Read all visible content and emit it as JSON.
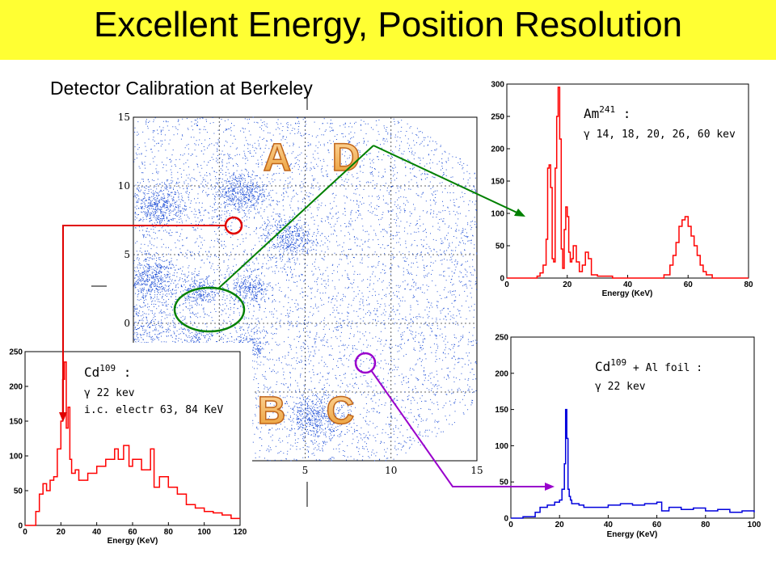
{
  "slide": {
    "title": "Excellent Energy, Position Resolution",
    "subtitle": "Detector Calibration at Berkeley"
  },
  "colors": {
    "title_bg": "#ffff33",
    "scatter_points": "#1f4fd6",
    "am_spectrum": "#ff0000",
    "cd_al_spectrum": "#0000dd",
    "cd_spectrum": "#ff0000",
    "green_connector": "#008000",
    "red_connector": "#e00000",
    "purple_connector": "#9900cc"
  },
  "quadrant_labels": [
    "A",
    "D",
    "B",
    "C"
  ],
  "chart_data": [
    {
      "type": "scatter",
      "x_ticks": [
        "0",
        "5",
        "10",
        "15"
      ],
      "y_ticks": [
        "15",
        "10",
        "5",
        "0",
        "-5"
      ],
      "xlim": [
        -5,
        15
      ],
      "ylim": [
        -10,
        15
      ],
      "grid": true,
      "clusters": [
        {
          "x": -6.5,
          "y": -1.0,
          "spread": 1.6
        },
        {
          "x": -4.0,
          "y": 3.2,
          "spread": 1.0
        },
        {
          "x": -3.5,
          "y": 8.5,
          "spread": 1.0
        },
        {
          "x": 1.2,
          "y": 9.5,
          "spread": 1.0
        },
        {
          "x": 3.9,
          "y": 6.3,
          "spread": 0.9
        },
        {
          "x": -1.2,
          "y": 2.4,
          "spread": 0.7
        },
        {
          "x": 1.8,
          "y": 2.4,
          "spread": 0.7
        },
        {
          "x": -1.2,
          "y": -1.8,
          "spread": 0.7
        },
        {
          "x": 1.6,
          "y": -1.8,
          "spread": 0.7
        },
        {
          "x": 5.6,
          "y": -6.8,
          "spread": 1.0
        }
      ]
    },
    {
      "type": "line",
      "series_name": "Am241",
      "annotation_isotope": "Am",
      "annotation_mass": "241",
      "annotation_suffix": " :",
      "annotation_gamma": "γ 14, 18, 20, 26, 60 kev",
      "xlabel": "Energy (KeV)",
      "x_ticks": [
        0,
        20,
        40,
        60,
        80
      ],
      "y_ticks": [
        0,
        50,
        100,
        150,
        200,
        250,
        300
      ],
      "xlim": [
        0,
        80
      ],
      "ylim": [
        0,
        300
      ],
      "x": [
        0,
        2,
        4,
        6,
        8,
        10,
        11,
        12,
        13,
        13.5,
        14,
        14.5,
        15,
        15.5,
        16,
        16.5,
        17,
        17.5,
        18,
        18.5,
        19,
        19.5,
        20,
        20.5,
        21,
        21.5,
        22,
        23,
        24,
        25,
        26,
        27,
        28,
        30,
        35,
        40,
        45,
        50,
        52,
        54,
        55,
        56,
        57,
        58,
        59,
        60,
        61,
        62,
        63,
        64,
        65,
        66,
        68,
        70,
        75,
        80
      ],
      "values": [
        0,
        0,
        0,
        0,
        0,
        3,
        8,
        20,
        60,
        170,
        175,
        140,
        30,
        25,
        170,
        250,
        295,
        215,
        45,
        15,
        75,
        110,
        95,
        40,
        25,
        30,
        50,
        25,
        10,
        20,
        40,
        30,
        5,
        3,
        0,
        0,
        0,
        0,
        5,
        20,
        35,
        55,
        80,
        90,
        95,
        80,
        65,
        50,
        35,
        20,
        10,
        5,
        0,
        0,
        0,
        0
      ]
    },
    {
      "type": "line",
      "series_name": "Cd109 + Al foil",
      "annotation_isotope": "Cd",
      "annotation_mass": "109",
      "annotation_suffix": " + Al foil :",
      "annotation_gamma": "γ 22 kev",
      "xlabel": "Energy (KeV)",
      "x_ticks": [
        0,
        20,
        40,
        60,
        80,
        100
      ],
      "y_ticks": [
        0,
        50,
        100,
        150,
        200,
        250
      ],
      "xlim": [
        0,
        100
      ],
      "ylim": [
        0,
        250
      ],
      "x": [
        0,
        5,
        10,
        12,
        15,
        18,
        20,
        21,
        22,
        22.5,
        23,
        23.5,
        24,
        24.5,
        25,
        26,
        28,
        30,
        35,
        40,
        45,
        50,
        55,
        60,
        62,
        65,
        70,
        75,
        80,
        85,
        90,
        95,
        100
      ],
      "values": [
        0,
        2,
        8,
        15,
        18,
        22,
        25,
        40,
        75,
        150,
        110,
        40,
        30,
        25,
        20,
        20,
        18,
        15,
        15,
        18,
        20,
        18,
        20,
        22,
        10,
        15,
        12,
        14,
        10,
        12,
        8,
        10,
        8
      ]
    },
    {
      "type": "line",
      "series_name": "Cd109",
      "annotation_isotope": "Cd",
      "annotation_mass": "109",
      "annotation_suffix": " :",
      "annotation_gamma": "γ 22 kev",
      "annotation_extra": "i.c. electr 63, 84 KeV",
      "xlabel": "Energy (KeV)",
      "x_ticks": [
        0,
        20,
        40,
        60,
        80,
        100,
        120
      ],
      "y_ticks": [
        0,
        50,
        100,
        150,
        200,
        250
      ],
      "xlim": [
        0,
        120
      ],
      "ylim": [
        0,
        250
      ],
      "x": [
        0,
        4,
        6,
        8,
        10,
        12,
        14,
        16,
        18,
        20,
        21,
        22,
        23,
        24,
        25,
        26,
        28,
        30,
        35,
        40,
        45,
        50,
        52,
        55,
        58,
        60,
        65,
        70,
        72,
        75,
        80,
        85,
        90,
        95,
        100,
        105,
        110,
        115,
        120
      ],
      "values": [
        0,
        0,
        20,
        45,
        60,
        50,
        65,
        70,
        110,
        150,
        210,
        235,
        140,
        170,
        95,
        75,
        80,
        65,
        75,
        85,
        95,
        110,
        95,
        115,
        85,
        95,
        80,
        110,
        55,
        70,
        55,
        45,
        30,
        25,
        20,
        18,
        15,
        10,
        10
      ]
    }
  ]
}
